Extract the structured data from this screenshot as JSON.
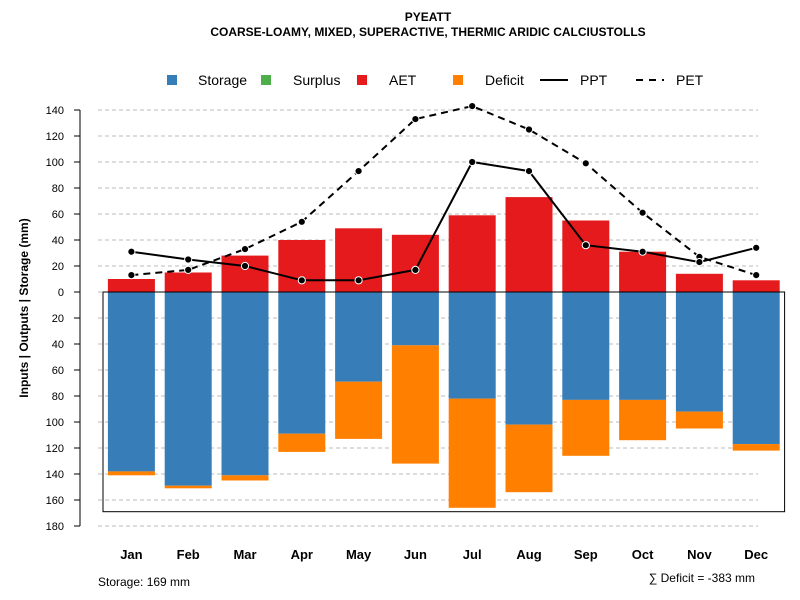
{
  "chart_data": {
    "type": "bar",
    "title": "PYEATT",
    "subtitle": "COARSE-LOAMY, MIXED, SUPERACTIVE, THERMIC ARIDIC CALCIUSTOLLS",
    "ylabel": "Inputs | Outputs | Storage     (mm)",
    "ylim": [
      -180,
      150
    ],
    "y_ticks": [
      140,
      120,
      100,
      80,
      60,
      40,
      20,
      0,
      -20,
      -40,
      -60,
      -80,
      -100,
      -120,
      -140,
      -160,
      -180
    ],
    "y_tick_labels": [
      "140",
      "120",
      "100",
      "80",
      "60",
      "40",
      "20",
      "0",
      "20",
      "40",
      "60",
      "80",
      "100",
      "120",
      "140",
      "160",
      "180"
    ],
    "categories": [
      "Jan",
      "Feb",
      "Mar",
      "Apr",
      "May",
      "Jun",
      "Jul",
      "Aug",
      "Sep",
      "Oct",
      "Nov",
      "Dec"
    ],
    "series": [
      {
        "name": "Storage",
        "color": "#377EB8",
        "kind": "bar_below",
        "values": [
          138,
          149,
          141,
          109,
          69,
          41,
          82,
          102,
          83,
          83,
          92,
          117
        ]
      },
      {
        "name": "Surplus",
        "color": "#4DAF4A",
        "kind": "bar_above",
        "values": [
          0,
          0,
          0,
          0,
          0,
          0,
          0,
          0,
          0,
          0,
          0,
          0
        ]
      },
      {
        "name": "AET",
        "color": "#E41A1C",
        "kind": "bar_above",
        "values": [
          10,
          15,
          28,
          40,
          49,
          44,
          59,
          73,
          55,
          31,
          14,
          9
        ]
      },
      {
        "name": "Deficit",
        "color": "#FF7F00",
        "kind": "bar_below_stacked",
        "values": [
          3,
          2,
          4,
          14,
          44,
          91,
          84,
          52,
          43,
          31,
          13,
          5
        ]
      },
      {
        "name": "PPT",
        "color": "#000000",
        "kind": "line_solid",
        "values": [
          31,
          25,
          20,
          9,
          9,
          17,
          100,
          93,
          36,
          31,
          23,
          34
        ]
      },
      {
        "name": "PET",
        "color": "#000000",
        "kind": "line_dashed",
        "values": [
          13,
          17,
          33,
          54,
          93,
          133,
          143,
          125,
          99,
          61,
          27,
          13
        ]
      }
    ],
    "storage_box_depth": 169,
    "legend_position": "top",
    "grid": true
  },
  "footer": {
    "storage_label": "Storage: 169 mm",
    "deficit_label": "∑ Deficit = -383 mm"
  }
}
